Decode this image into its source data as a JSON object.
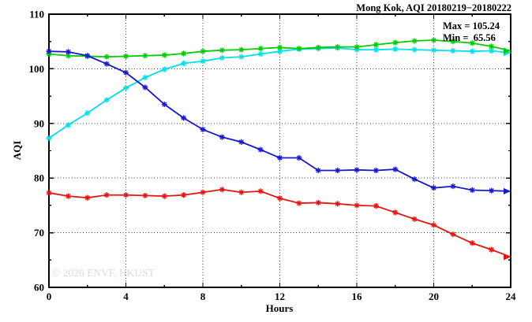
{
  "chart_data": {
    "type": "line",
    "title": "Mong Kok, AQI 20180219−20180222",
    "xlabel": "Hours",
    "ylabel": "AQI",
    "xlim": [
      0,
      24
    ],
    "ylim": [
      60,
      110
    ],
    "xticks": [
      0,
      4,
      8,
      12,
      16,
      20,
      24
    ],
    "xticks_minor": [
      2,
      6,
      10,
      14,
      18,
      22
    ],
    "yticks": [
      60,
      70,
      80,
      90,
      100,
      110
    ],
    "yticks_minor": [
      65,
      75,
      85,
      95,
      105
    ],
    "grid": "dotted lines at major ticks, ticks mirrored inward on all four sides",
    "legend": "none",
    "annotation": {
      "max_label": "Max = 105.24",
      "min_label": "Min =  65.56",
      "max_value": 105.24,
      "min_value": 65.56
    },
    "watermark": "© 2026 ENVF, HKUST",
    "x": [
      0,
      1,
      2,
      3,
      4,
      5,
      6,
      7,
      8,
      9,
      10,
      11,
      12,
      13,
      14,
      15,
      16,
      17,
      18,
      19,
      20,
      21,
      22,
      23,
      24
    ],
    "series": [
      {
        "name": "series-cyan",
        "color": "#00e0e8",
        "marker": "asterisk",
        "end_arrow": true,
        "values": [
          87.3,
          89.7,
          91.9,
          94.3,
          96.5,
          98.4,
          99.9,
          101.0,
          101.4,
          102.0,
          102.2,
          102.7,
          103.2,
          103.6,
          103.7,
          103.8,
          103.5,
          103.5,
          103.6,
          103.5,
          103.4,
          103.3,
          103.2,
          103.3,
          102.9
        ]
      },
      {
        "name": "series-green",
        "color": "#00cc00",
        "marker": "asterisk",
        "end_arrow": true,
        "values": [
          102.7,
          102.4,
          102.3,
          102.2,
          102.3,
          102.4,
          102.5,
          102.8,
          103.2,
          103.4,
          103.5,
          103.7,
          103.9,
          103.7,
          103.9,
          104.0,
          104.0,
          104.4,
          104.8,
          105.1,
          105.24,
          105.0,
          104.7,
          104.1,
          103.3
        ]
      },
      {
        "name": "series-blue",
        "color": "#1717d2",
        "marker": "asterisk",
        "end_arrow": true,
        "values": [
          103.2,
          103.1,
          102.4,
          100.9,
          99.3,
          96.6,
          93.5,
          91.0,
          88.9,
          87.5,
          86.6,
          85.2,
          83.7,
          83.7,
          81.4,
          81.4,
          81.5,
          81.4,
          81.6,
          79.8,
          78.2,
          78.5,
          77.8,
          77.7,
          77.6
        ]
      },
      {
        "name": "series-red",
        "color": "#e81414",
        "marker": "asterisk",
        "end_arrow": true,
        "values": [
          77.3,
          76.7,
          76.4,
          76.9,
          76.9,
          76.8,
          76.7,
          76.9,
          77.4,
          77.9,
          77.4,
          77.6,
          76.3,
          75.4,
          75.5,
          75.3,
          75.0,
          74.9,
          73.7,
          72.5,
          71.4,
          69.7,
          68.1,
          66.9,
          65.56
        ]
      }
    ]
  }
}
